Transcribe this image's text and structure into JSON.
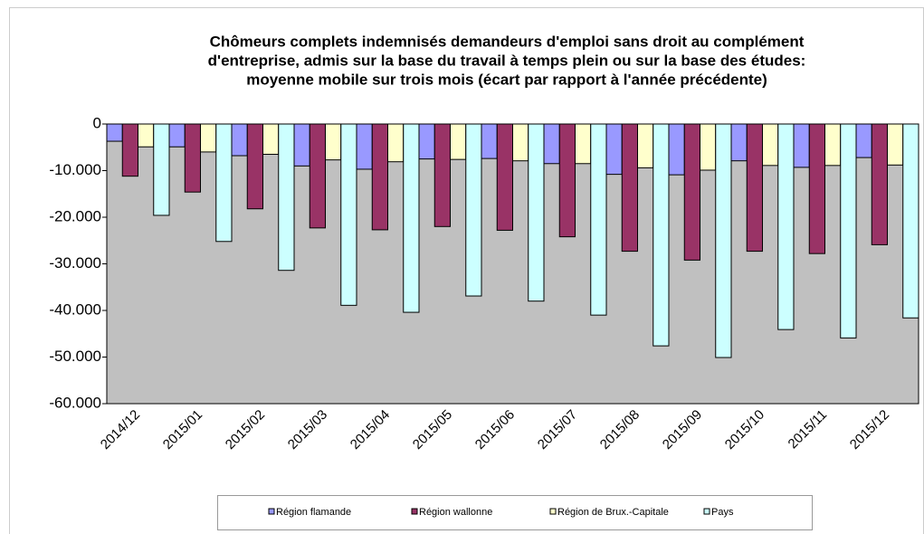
{
  "chart_data": {
    "type": "bar",
    "title": [
      "Chômeurs complets indemnisés demandeurs d'emploi sans droit au complément",
      "d'entreprise, admis sur la base du travail à temps plein ou sur la base des études:",
      "moyenne mobile sur trois mois (écart par rapport à l'année précédente)"
    ],
    "categories": [
      "2014/12",
      "2015/01",
      "2015/02",
      "2015/03",
      "2015/04",
      "2015/05",
      "2015/06",
      "2015/07",
      "2015/08",
      "2015/09",
      "2015/10",
      "2015/11",
      "2015/12"
    ],
    "series": [
      {
        "name": "Région flamande",
        "color": "#9999ff",
        "values": [
          -3700,
          -4900,
          -6800,
          -9000,
          -9700,
          -7500,
          -7400,
          -8500,
          -10800,
          -10900,
          -7900,
          -9300,
          -7200
        ]
      },
      {
        "name": "Région wallonne",
        "color": "#993366",
        "values": [
          -11200,
          -14600,
          -18200,
          -22300,
          -22700,
          -22000,
          -22800,
          -24200,
          -27300,
          -29200,
          -27300,
          -27800,
          -25900
        ]
      },
      {
        "name": "Région de Brux.-Capitale",
        "color": "#ffffcc",
        "values": [
          -4900,
          -6000,
          -6500,
          -7700,
          -8100,
          -7600,
          -7900,
          -8500,
          -9400,
          -9900,
          -8900,
          -8900,
          -8800
        ]
      },
      {
        "name": "Pays",
        "color": "#ccffff",
        "values": [
          -19600,
          -25200,
          -31400,
          -38900,
          -40400,
          -36900,
          -38000,
          -41000,
          -47600,
          -50100,
          -44100,
          -45900,
          -41600
        ]
      }
    ],
    "ylim": [
      -60000,
      0
    ],
    "yticks": [
      0,
      {
        "value": -10000,
        "label": "-10.000"
      },
      {
        "value": -20000,
        "label": "-20.000"
      },
      {
        "value": -30000,
        "label": "-30.000"
      },
      {
        "value": -40000,
        "label": "-40.000"
      },
      {
        "value": -50000,
        "label": "-50.000"
      },
      {
        "value": -60000,
        "label": "-60.000"
      }
    ],
    "plot_background": "#c0c0c0"
  }
}
